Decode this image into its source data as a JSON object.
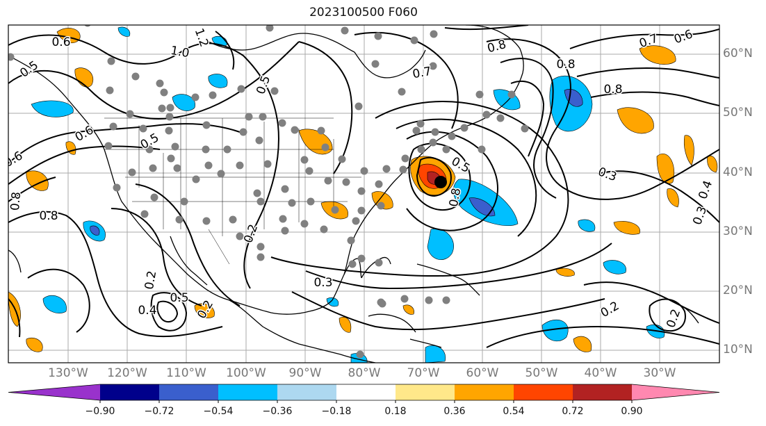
{
  "title": "2023100500 F060",
  "lat_labels": [
    "60°N",
    "50°N",
    "40°N",
    "30°N",
    "20°N",
    "10°N"
  ],
  "lon_labels": [
    "130°W",
    "120°W",
    "110°W",
    "100°W",
    "90°W",
    "80°W",
    "70°W",
    "60°W",
    "50°W",
    "40°W",
    "30°W"
  ],
  "contour_labels": [
    "0.6",
    "0.5",
    "1.2",
    "1.0",
    "0.8",
    "0.7",
    "0.6",
    "0.8",
    "0.8",
    "0.8",
    "0.6",
    "0.5",
    "0.8",
    "0.6",
    "0.7",
    "0.5",
    "0.5",
    "0.3",
    "0.4",
    "0.3",
    "0.2",
    "0.3",
    "0.2",
    "0.2",
    "0.4",
    "0.5",
    "0.2",
    "0.2",
    "0.8"
  ],
  "colorbar": {
    "labels": [
      "−0.90",
      "−0.72",
      "−0.54",
      "−0.36",
      "−0.18",
      "0.18",
      "0.36",
      "0.54",
      "0.72",
      "0.90"
    ],
    "colors": [
      "#9932cc",
      "#00008b",
      "#3a5fcd",
      "#00bfff",
      "#add8f0",
      "#ffffff",
      "#ffe88a",
      "#ffa500",
      "#ff4500",
      "#b22222",
      "#ff88b0"
    ]
  },
  "colors": {
    "positive": "#ffa500",
    "negative": "#00bfff",
    "deep_negative": "#3a5fcd",
    "station": "#808080",
    "contour": "#000000"
  }
}
